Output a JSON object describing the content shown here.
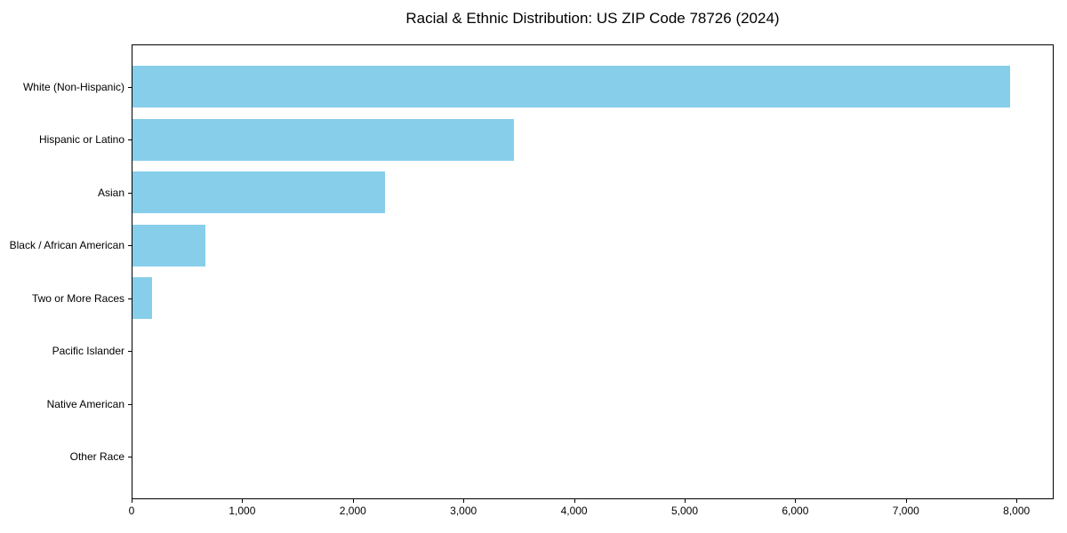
{
  "chart_data": {
    "type": "bar",
    "orientation": "horizontal",
    "title": "Racial & Ethnic Distribution: US ZIP Code 78726 (2024)",
    "categories": [
      "White (Non-Hispanic)",
      "Hispanic or Latino",
      "Asian",
      "Black / African American",
      "Two or More Races",
      "Pacific Islander",
      "Native American",
      "Other Race"
    ],
    "values": [
      7930,
      3450,
      2280,
      655,
      175,
      0,
      0,
      0
    ],
    "xlabel": "",
    "ylabel": "",
    "xlim": [
      0,
      8320
    ],
    "x_ticks": [
      0,
      1000,
      2000,
      3000,
      4000,
      5000,
      6000,
      7000,
      8000
    ],
    "x_tick_labels": [
      "0",
      "1,000",
      "2,000",
      "3,000",
      "4,000",
      "5,000",
      "6,000",
      "7,000",
      "8,000"
    ],
    "bar_color": "#87CEEB",
    "axis_color": "#000000",
    "text_color": "#000000",
    "background_color": "#ffffff",
    "grid": false,
    "legend": null
  }
}
